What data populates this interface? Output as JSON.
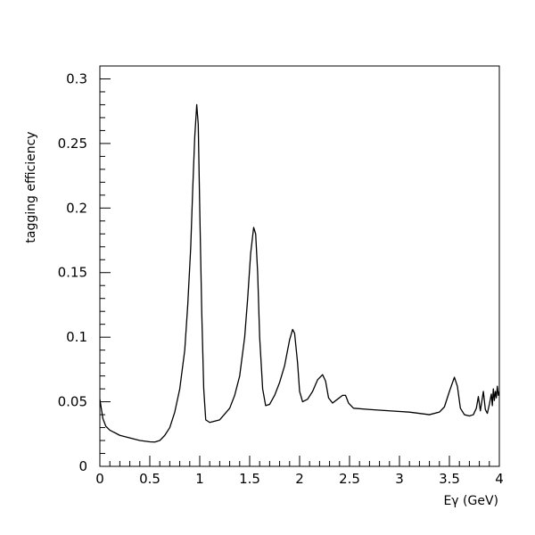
{
  "chart_data": {
    "type": "line",
    "title": "",
    "xlabel": "Eγ (GeV)",
    "ylabel": "tagging efficiency",
    "xlim": [
      0,
      4
    ],
    "ylim": [
      0,
      0.31
    ],
    "grid": false,
    "x_ticks": [
      "0",
      "0.5",
      "1",
      "1.5",
      "2",
      "2.5",
      "3",
      "3.5",
      "4"
    ],
    "y_ticks": [
      "0",
      "0.05",
      "0.1",
      "0.15",
      "0.2",
      "0.25",
      "0.3"
    ],
    "series": [
      {
        "name": "",
        "color": "#000000",
        "points": [
          [
            0.0,
            0.052
          ],
          [
            0.03,
            0.037
          ],
          [
            0.06,
            0.031
          ],
          [
            0.1,
            0.028
          ],
          [
            0.2,
            0.024
          ],
          [
            0.3,
            0.022
          ],
          [
            0.4,
            0.02
          ],
          [
            0.5,
            0.019
          ],
          [
            0.55,
            0.0188
          ],
          [
            0.6,
            0.02
          ],
          [
            0.65,
            0.024
          ],
          [
            0.7,
            0.03
          ],
          [
            0.75,
            0.042
          ],
          [
            0.8,
            0.06
          ],
          [
            0.85,
            0.09
          ],
          [
            0.88,
            0.125
          ],
          [
            0.91,
            0.17
          ],
          [
            0.93,
            0.215
          ],
          [
            0.95,
            0.255
          ],
          [
            0.97,
            0.28
          ],
          [
            0.985,
            0.265
          ],
          [
            1.0,
            0.2
          ],
          [
            1.02,
            0.12
          ],
          [
            1.04,
            0.06
          ],
          [
            1.06,
            0.036
          ],
          [
            1.1,
            0.034
          ],
          [
            1.2,
            0.036
          ],
          [
            1.3,
            0.045
          ],
          [
            1.35,
            0.055
          ],
          [
            1.4,
            0.07
          ],
          [
            1.45,
            0.1
          ],
          [
            1.48,
            0.13
          ],
          [
            1.51,
            0.165
          ],
          [
            1.54,
            0.185
          ],
          [
            1.56,
            0.18
          ],
          [
            1.58,
            0.15
          ],
          [
            1.6,
            0.1
          ],
          [
            1.63,
            0.06
          ],
          [
            1.66,
            0.047
          ],
          [
            1.7,
            0.048
          ],
          [
            1.75,
            0.055
          ],
          [
            1.8,
            0.065
          ],
          [
            1.85,
            0.078
          ],
          [
            1.9,
            0.098
          ],
          [
            1.93,
            0.106
          ],
          [
            1.95,
            0.103
          ],
          [
            1.98,
            0.08
          ],
          [
            2.0,
            0.058
          ],
          [
            2.03,
            0.05
          ],
          [
            2.08,
            0.052
          ],
          [
            2.13,
            0.058
          ],
          [
            2.18,
            0.067
          ],
          [
            2.23,
            0.071
          ],
          [
            2.26,
            0.066
          ],
          [
            2.29,
            0.053
          ],
          [
            2.33,
            0.049
          ],
          [
            2.38,
            0.052
          ],
          [
            2.43,
            0.055
          ],
          [
            2.46,
            0.055
          ],
          [
            2.49,
            0.049
          ],
          [
            2.54,
            0.045
          ],
          [
            2.7,
            0.044
          ],
          [
            2.9,
            0.043
          ],
          [
            3.1,
            0.042
          ],
          [
            3.3,
            0.04
          ],
          [
            3.4,
            0.042
          ],
          [
            3.45,
            0.046
          ],
          [
            3.5,
            0.058
          ],
          [
            3.55,
            0.069
          ],
          [
            3.58,
            0.062
          ],
          [
            3.61,
            0.045
          ],
          [
            3.65,
            0.04
          ],
          [
            3.7,
            0.039
          ],
          [
            3.74,
            0.04
          ],
          [
            3.77,
            0.045
          ],
          [
            3.79,
            0.054
          ],
          [
            3.81,
            0.043
          ],
          [
            3.84,
            0.058
          ],
          [
            3.86,
            0.044
          ],
          [
            3.88,
            0.041
          ],
          [
            3.9,
            0.048
          ],
          [
            3.92,
            0.056
          ],
          [
            3.93,
            0.047
          ],
          [
            3.94,
            0.06
          ],
          [
            3.95,
            0.051
          ],
          [
            3.96,
            0.058
          ],
          [
            3.97,
            0.053
          ],
          [
            3.98,
            0.062
          ],
          [
            3.99,
            0.055
          ],
          [
            4.0,
            0.058
          ]
        ]
      }
    ]
  }
}
